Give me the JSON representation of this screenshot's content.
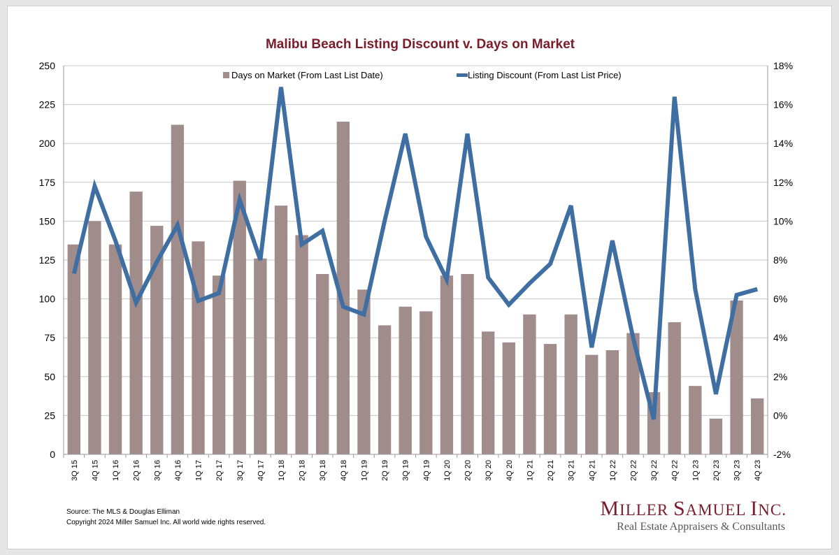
{
  "colors": {
    "bar": "#a18c8c",
    "line": "#3f6ea3",
    "title": "#7a1c2a",
    "grid": "#c8c8c8",
    "logo": "#7a1c2a"
  },
  "chart_data": {
    "type": "bar",
    "title": "Malibu Beach Listing Discount v. Days on Market",
    "categories": [
      "3Q 15",
      "4Q 15",
      "1Q 16",
      "2Q 16",
      "3Q 16",
      "4Q 16",
      "1Q 17",
      "2Q 17",
      "3Q 17",
      "4Q 17",
      "1Q 18",
      "2Q 18",
      "3Q 18",
      "4Q 18",
      "1Q 19",
      "2Q 19",
      "3Q 19",
      "4Q 19",
      "1Q 20",
      "2Q 20",
      "3Q 20",
      "4Q 20",
      "1Q 21",
      "2Q 21",
      "3Q 21",
      "4Q 21",
      "1Q 22",
      "2Q 22",
      "3Q 22",
      "4Q 22",
      "1Q 23",
      "2Q 23",
      "3Q 23",
      "4Q 23"
    ],
    "series": [
      {
        "name": "Days on Market (From Last List Date)",
        "type": "bar",
        "axis": "left",
        "values": [
          135,
          150,
          135,
          169,
          147,
          212,
          137,
          115,
          176,
          126,
          160,
          141,
          116,
          214,
          106,
          83,
          95,
          92,
          115,
          116,
          79,
          72,
          90,
          71,
          90,
          64,
          67,
          78,
          40,
          85,
          44,
          23,
          99,
          36
        ]
      },
      {
        "name": "Listing Discount (From Last List Price)",
        "type": "line",
        "axis": "right",
        "values": [
          7.3,
          11.8,
          9.0,
          5.8,
          7.9,
          9.8,
          5.9,
          6.3,
          11.1,
          8.0,
          16.9,
          8.8,
          9.5,
          5.6,
          5.2,
          10.0,
          14.5,
          9.2,
          7.0,
          14.5,
          7.1,
          5.7,
          6.8,
          7.8,
          10.8,
          3.5,
          9.0,
          4.0,
          -0.2,
          16.4,
          6.5,
          1.1,
          6.2,
          6.5
        ]
      }
    ],
    "y_left": {
      "ylim": [
        0,
        250
      ],
      "ticks": [
        "0",
        "25",
        "50",
        "75",
        "100",
        "125",
        "150",
        "175",
        "200",
        "225",
        "250"
      ]
    },
    "y_right": {
      "ylim": [
        -2,
        18
      ],
      "ticks": [
        "-2%",
        "0%",
        "2%",
        "4%",
        "6%",
        "8%",
        "10%",
        "12%",
        "14%",
        "16%",
        "18%"
      ]
    },
    "grid": true,
    "legend": "top"
  },
  "footer": {
    "source": "Source: The MLS & Douglas Elliman",
    "copyright": "Copyright 2024 Miller Samuel Inc.  All world wide rights reserved."
  },
  "logo": {
    "name_first_M": "M",
    "name_rest1": "ILLER ",
    "name_S": "S",
    "name_rest2": "AMUEL ",
    "name_I": "I",
    "name_rest3": "NC.",
    "tagline": "Real Estate Appraisers & Consultants"
  }
}
